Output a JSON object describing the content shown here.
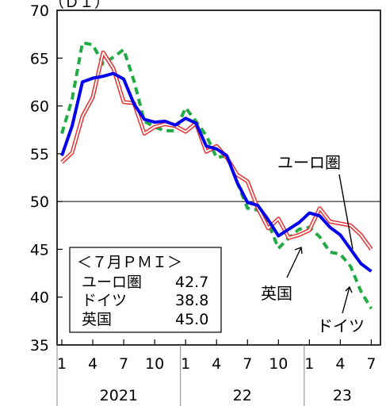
{
  "chart_data": {
    "type": "line",
    "unit_label": "（ＤＩ）",
    "ylim": [
      35,
      70
    ],
    "yticks": [
      35,
      40,
      45,
      50,
      55,
      60,
      65,
      70
    ],
    "reference_line": 50,
    "x_tick_labels": [
      "1",
      "4",
      "7",
      "10",
      "1",
      "4",
      "7",
      "10",
      "1",
      "4",
      "7"
    ],
    "x_tick_index": [
      0,
      3,
      6,
      9,
      12,
      15,
      18,
      21,
      24,
      27,
      30
    ],
    "year_labels": [
      {
        "label": "2021",
        "start": 0,
        "end": 11
      },
      {
        "label": "22",
        "start": 12,
        "end": 23
      },
      {
        "label": "23",
        "start": 24,
        "end": 30
      }
    ],
    "series": [
      {
        "name": "ユーロ圏",
        "color": "#0000ee",
        "style": "solid",
        "values": [
          54.8,
          57.9,
          62.5,
          62.9,
          63.1,
          63.4,
          62.8,
          60.2,
          58.6,
          58.3,
          58.4,
          58.0,
          58.7,
          58.2,
          55.8,
          55.5,
          54.8,
          52.0,
          49.9,
          49.6,
          48.1,
          46.4,
          47.1,
          47.8,
          48.8,
          48.5,
          47.3,
          46.5,
          45.0,
          43.5,
          42.7
        ],
        "label_pos": [
          47,
          47
        ]
      },
      {
        "name": "ドイツ",
        "color": "#22aa44",
        "style": "dashed",
        "values": [
          57.1,
          60.7,
          66.6,
          66.4,
          64.4,
          65.1,
          65.9,
          62.6,
          58.4,
          57.8,
          57.4,
          57.4,
          59.8,
          58.4,
          56.9,
          54.6,
          54.8,
          52.0,
          49.3,
          49.1,
          47.8,
          45.1,
          46.2,
          47.1,
          47.3,
          46.3,
          44.7,
          44.5,
          43.2,
          40.6,
          38.8
        ],
        "label_pos": [
          28,
          37.1
        ]
      },
      {
        "name": "英国",
        "color": "#e83030",
        "style": "double",
        "values": [
          54.1,
          55.1,
          58.9,
          60.9,
          65.6,
          63.9,
          60.4,
          60.3,
          57.1,
          57.8,
          58.1,
          57.9,
          57.3,
          58.2,
          55.2,
          55.8,
          54.6,
          52.8,
          52.1,
          49.3,
          47.2,
          48.2,
          46.2,
          46.5,
          47.0,
          49.3,
          47.9,
          47.7,
          47.5,
          46.5,
          45.0
        ]
      }
    ],
    "legend": {
      "title": "＜７月ＰＭＩ＞",
      "entries": [
        {
          "name": "ユーロ圏",
          "value": "42.7"
        },
        {
          "name": "ドイツ",
          "value": "38.8"
        },
        {
          "name": "英国",
          "value": "45.0"
        }
      ]
    },
    "annotations": [
      {
        "text": "ユーロ圏",
        "series": "ユーロ圏"
      },
      {
        "text": "英国",
        "series": "英国"
      },
      {
        "text": "ドイツ",
        "series": "ドイツ"
      }
    ]
  }
}
